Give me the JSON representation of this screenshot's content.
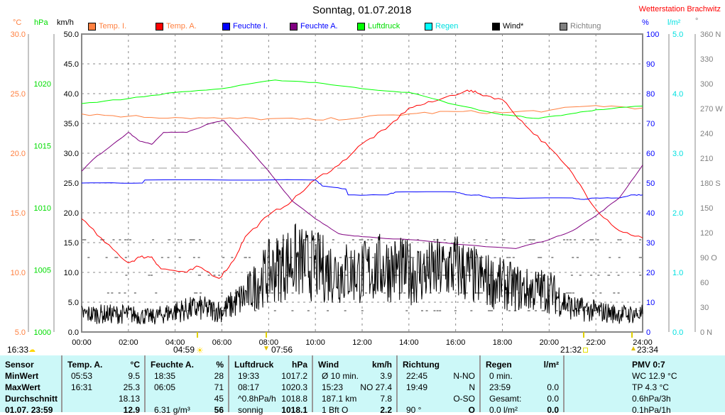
{
  "title": "Sonntag, 01.07.2018",
  "station": "Wetterstation Brachwitz",
  "units": {
    "c": "°C",
    "hpa": "hPa",
    "kmh": "km/h",
    "pct": "%",
    "lm2": "l/m²",
    "deg": "°"
  },
  "legend": [
    {
      "label": "Temp. I.",
      "color": "#ff8040",
      "text_color": "#ff8040"
    },
    {
      "label": "Temp. A.",
      "color": "#ff0000",
      "text_color": "#ff8040"
    },
    {
      "label": "Feuchte I.",
      "color": "#0000ff",
      "text_color": "#0000ff"
    },
    {
      "label": "Feuchte A.",
      "color": "#800080",
      "text_color": "#0000ff"
    },
    {
      "label": "Luftdruck",
      "color": "#00ff00",
      "text_color": "#00dd00"
    },
    {
      "label": "Regen",
      "color": "#00ffff",
      "text_color": "#00e0e0"
    },
    {
      "label": "Wind*",
      "color": "#000000",
      "text_color": "#000000"
    },
    {
      "label": "Richtung",
      "color": "#808080",
      "text_color": "#808080"
    }
  ],
  "axes": {
    "c": [
      "30.0",
      "25.0",
      "20.0",
      "15.0",
      "10.0",
      "5.0"
    ],
    "hpa": [
      "1020",
      "1015",
      "1010",
      "1005",
      "1000"
    ],
    "kmh": [
      "50.0",
      "45.0",
      "40.0",
      "35.0",
      "30.0",
      "25.0",
      "20.0",
      "15.0",
      "10.0",
      "5.0",
      "0.0"
    ],
    "pct": [
      "100",
      "90",
      "80",
      "70",
      "60",
      "50",
      "40",
      "30",
      "20",
      "10",
      "0"
    ],
    "lm2": [
      "5.0",
      "4.0",
      "3.0",
      "2.0",
      "1.0",
      "0.0"
    ],
    "deg": [
      "360 N",
      "330",
      "300",
      "270 W",
      "240",
      "210",
      "180 S",
      "150",
      "120",
      "90 O",
      "60",
      "30",
      "0 N"
    ],
    "time": [
      "00:00",
      "02:00",
      "04:00",
      "06:00",
      "08:00",
      "10:00",
      "12:00",
      "14:00",
      "16:00",
      "18:00",
      "20:00",
      "22:00",
      "24:00"
    ]
  },
  "astro": {
    "left": "16:33",
    "sunrise": "04:59",
    "moonset": "07:56",
    "sunset": "21:32",
    "moonrise": "23:34"
  },
  "chart_data": {
    "type": "line",
    "title": "Sonntag, 01.07.2018",
    "xlim": [
      0,
      24
    ],
    "series": [
      {
        "name": "Temp. I.",
        "unit": "°C",
        "points": [
          [
            0,
            23.3
          ],
          [
            2,
            23.1
          ],
          [
            4,
            23.0
          ],
          [
            6,
            22.9
          ],
          [
            8,
            22.9
          ],
          [
            10,
            22.8
          ],
          [
            12,
            23.0
          ],
          [
            14,
            23.3
          ],
          [
            16,
            23.5
          ],
          [
            18,
            23.4
          ],
          [
            20,
            23.6
          ],
          [
            22,
            24.0
          ],
          [
            24,
            23.8
          ]
        ]
      },
      {
        "name": "Temp. A.",
        "unit": "°C",
        "points": [
          [
            0,
            14.5
          ],
          [
            1,
            12.5
          ],
          [
            2,
            10.8
          ],
          [
            2.5,
            11.3
          ],
          [
            3,
            11.3
          ],
          [
            3.4,
            10.3
          ],
          [
            4.5,
            10.0
          ],
          [
            5,
            10.5
          ],
          [
            5.88,
            9.5
          ],
          [
            6.5,
            11
          ],
          [
            7,
            13
          ],
          [
            8,
            14.8
          ],
          [
            9,
            16
          ],
          [
            10,
            17.8
          ],
          [
            11,
            19
          ],
          [
            12,
            20.8
          ],
          [
            13,
            22
          ],
          [
            14,
            23.8
          ],
          [
            15,
            24.3
          ],
          [
            16.5,
            25.3
          ],
          [
            17,
            25
          ],
          [
            18,
            24.5
          ],
          [
            19,
            22.3
          ],
          [
            20,
            20.5
          ],
          [
            21,
            18.3
          ],
          [
            22,
            15.3
          ],
          [
            23,
            13.5
          ],
          [
            24,
            12.9
          ]
        ]
      },
      {
        "name": "Feuchte I.",
        "unit": "%",
        "points": [
          [
            0,
            50
          ],
          [
            2.6,
            50
          ],
          [
            2.7,
            51
          ],
          [
            10,
            51
          ],
          [
            10.3,
            49
          ],
          [
            11.3,
            48
          ],
          [
            11.4,
            46
          ],
          [
            13,
            46
          ],
          [
            13.5,
            47
          ],
          [
            16,
            47
          ],
          [
            16.5,
            46
          ],
          [
            17,
            46
          ],
          [
            17.5,
            45
          ],
          [
            21,
            45
          ],
          [
            21.5,
            44.5
          ],
          [
            22,
            45
          ],
          [
            23,
            45
          ],
          [
            23.5,
            46
          ],
          [
            24,
            46
          ]
        ]
      },
      {
        "name": "Feuchte A.",
        "unit": "%",
        "points": [
          [
            0,
            54
          ],
          [
            0.5,
            58
          ],
          [
            1.5,
            64
          ],
          [
            2,
            67
          ],
          [
            2.5,
            64
          ],
          [
            3,
            63
          ],
          [
            3.5,
            67
          ],
          [
            4.5,
            67
          ],
          [
            5.5,
            70
          ],
          [
            6.08,
            71
          ],
          [
            7,
            63
          ],
          [
            8,
            54
          ],
          [
            9,
            44
          ],
          [
            10,
            38
          ],
          [
            11,
            33
          ],
          [
            12,
            32
          ],
          [
            14,
            31
          ],
          [
            16,
            29.5
          ],
          [
            18.58,
            28
          ],
          [
            19,
            29
          ],
          [
            20,
            31
          ],
          [
            21,
            34
          ],
          [
            22,
            39
          ],
          [
            23,
            45
          ],
          [
            24,
            56
          ]
        ]
      },
      {
        "name": "Luftdruck",
        "unit": "hPa",
        "points": [
          [
            0,
            1018.4
          ],
          [
            2,
            1018.8
          ],
          [
            4,
            1019.3
          ],
          [
            6,
            1019.6
          ],
          [
            8.28,
            1020.3
          ],
          [
            10,
            1020.1
          ],
          [
            12,
            1019.6
          ],
          [
            14,
            1019.3
          ],
          [
            16,
            1018.3
          ],
          [
            18,
            1017.5
          ],
          [
            19.55,
            1017.2
          ],
          [
            21,
            1017.6
          ],
          [
            22,
            1017.9
          ],
          [
            24,
            1018.2
          ]
        ]
      },
      {
        "name": "Wind*",
        "unit": "km/h",
        "hourly": [
          3,
          3,
          3,
          2.5,
          3.5,
          4,
          3.5,
          6,
          10,
          12,
          11,
          10,
          10,
          11,
          10,
          10,
          11,
          9,
          8,
          7,
          7,
          4,
          3.5,
          3,
          3
        ]
      }
    ]
  },
  "table": {
    "headers": [
      [
        "Sensor",
        ""
      ],
      [
        "Temp. A.",
        "°C"
      ],
      [
        "Feuchte A.",
        "%"
      ],
      [
        "Luftdruck",
        "hPa"
      ],
      [
        "Wind",
        "km/h"
      ],
      [
        "Richtung",
        ""
      ],
      [
        "Regen",
        "l/m²"
      ],
      [
        "PMV 0:7",
        ""
      ]
    ],
    "rows": [
      [
        "MinWert",
        "05:53",
        "9.5",
        "18:35",
        "28",
        "19:33",
        "1017.2",
        "Ø 10 min.",
        "3.9",
        "22:45",
        "N-NO",
        "0 min.",
        "",
        "WC 12.9 °C"
      ],
      [
        "MaxWert",
        "16:31",
        "25.3",
        "06:05",
        "71",
        "08:17",
        "1020.3",
        "15:23",
        "NO 27.4",
        "19:49",
        "N",
        "23:59",
        "0.0",
        "TP 4.3 °C"
      ],
      [
        "Durchschnitt",
        "",
        "18.13",
        "",
        "45",
        "^0.8hPa/h",
        "1018.8",
        "187.1 km",
        "7.8",
        "",
        "O-SO",
        "Gesamt:",
        "0.0",
        "0.6hPa/3h"
      ],
      [
        "01.07. 23:59",
        "",
        "12.9",
        "6.31 g/m³",
        "56",
        "sonnig",
        "1018.1",
        "1 Bft O",
        "2.2",
        "90 °",
        "O",
        "0.0 l/m²",
        "0.0",
        "0.1hPa/1h"
      ]
    ]
  }
}
